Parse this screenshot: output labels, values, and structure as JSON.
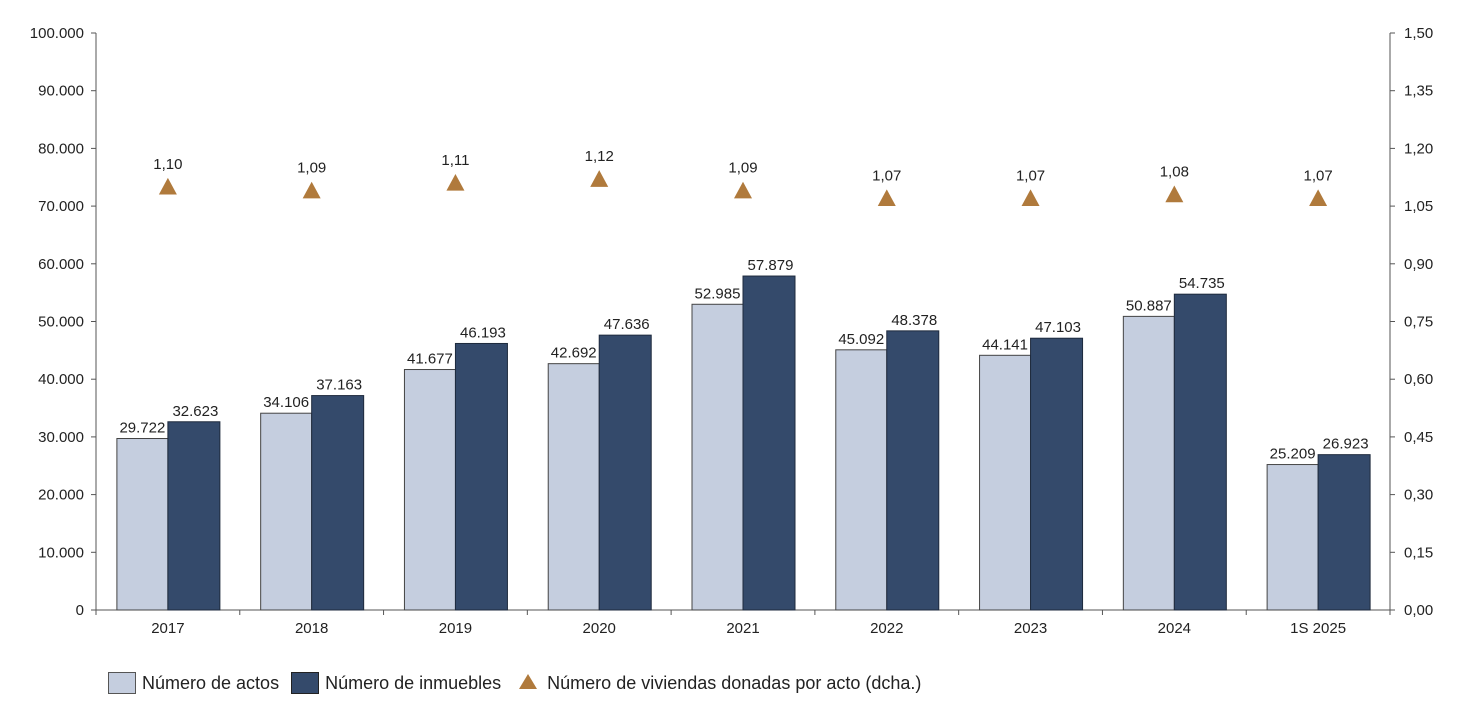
{
  "chart_data": {
    "type": "bar",
    "categories": [
      "2017",
      "2018",
      "2019",
      "2020",
      "2021",
      "2022",
      "2023",
      "2024",
      "1S 2025"
    ],
    "series": [
      {
        "name": "Número de actos",
        "axis": "left",
        "color": "#c5cedf",
        "values": [
          29722,
          34106,
          41677,
          42692,
          52985,
          45092,
          44141,
          50887,
          25209
        ],
        "labels": [
          "29.722",
          "34.106",
          "41.677",
          "42.692",
          "52.985",
          "45.092",
          "44.141",
          "50.887",
          "25.209"
        ]
      },
      {
        "name": "Número de inmuebles",
        "axis": "left",
        "color": "#344a6b",
        "values": [
          32623,
          37163,
          46193,
          47636,
          57879,
          48378,
          47103,
          54735,
          26923
        ],
        "labels": [
          "32.623",
          "37.163",
          "46.193",
          "47.636",
          "57.879",
          "48.378",
          "47.103",
          "54.735",
          "26.923"
        ]
      },
      {
        "name": "Número de viviendas donadas por acto (dcha.)",
        "axis": "right",
        "type": "scatter",
        "marker": "triangle",
        "color": "#b07a3c",
        "values": [
          1.1,
          1.09,
          1.11,
          1.12,
          1.09,
          1.07,
          1.07,
          1.08,
          1.07
        ],
        "labels": [
          "1,10",
          "1,09",
          "1,11",
          "1,12",
          "1,09",
          "1,07",
          "1,07",
          "1,08",
          "1,07"
        ]
      }
    ],
    "y_left": {
      "min": 0,
      "max": 100000,
      "ticks": [
        0,
        10000,
        20000,
        30000,
        40000,
        50000,
        60000,
        70000,
        80000,
        90000,
        100000
      ],
      "tick_labels": [
        "0",
        "10.000",
        "20.000",
        "30.000",
        "40.000",
        "50.000",
        "60.000",
        "70.000",
        "80.000",
        "90.000",
        "100.000"
      ]
    },
    "y_right": {
      "min": 0,
      "max": 1.5,
      "ticks": [
        0,
        0.15,
        0.3,
        0.45,
        0.6,
        0.75,
        0.9,
        1.05,
        1.2,
        1.35,
        1.5
      ],
      "tick_labels": [
        "0,00",
        "0,15",
        "0,30",
        "0,45",
        "0,60",
        "0,75",
        "0,90",
        "1,05",
        "1,20",
        "1,35",
        "1,50"
      ]
    },
    "grid": false,
    "legend_position": "bottom-left"
  }
}
